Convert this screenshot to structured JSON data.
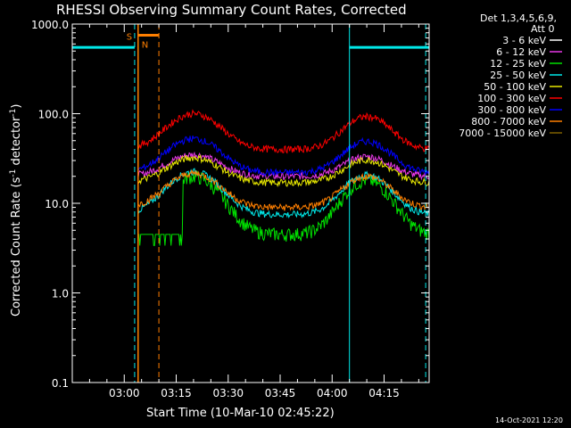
{
  "chart_data": {
    "type": "line",
    "title": "RHESSI Observing Summary Count Rates, Corrected",
    "xlabel": "Start Time (10-Mar-10 02:45:22)",
    "ylabel_main": "Corrected Count Rate (s",
    "ylabel_sup1": "-1",
    "ylabel_mid": " detector",
    "ylabel_sup2": "-1",
    "ylabel_end": ")",
    "yscale": "log",
    "ylim": [
      0.1,
      1000
    ],
    "xlim_minutes": [
      0,
      103
    ],
    "xticks_minutes": [
      15,
      30,
      45,
      60,
      75,
      90
    ],
    "x_tick_labels": [
      "03:00",
      "03:15",
      "03:30",
      "03:45",
      "04:00",
      "04:15"
    ],
    "y_tick_labels": [
      "0.1",
      "1.0",
      "10.0",
      "100.0",
      "1000.0"
    ],
    "legend_header": "Det 1,3,4,5,6,9,",
    "legend_att": "Att 0",
    "legend_position": "outside-right",
    "series": [
      {
        "name": "3 - 6 keV",
        "color": "#000000",
        "base": 15,
        "amp": 2.0
      },
      {
        "name": "6 - 12 keV",
        "color": "#e838e8",
        "base": 20,
        "amp": 1.75
      },
      {
        "name": "12 - 25 keV",
        "color": "#00e000",
        "base": 4.5,
        "amp": 4.4
      },
      {
        "name": "25 - 50 keV",
        "color": "#00e8e8",
        "base": 7.5,
        "amp": 3.0
      },
      {
        "name": "50 - 100 keV",
        "color": "#e8e800",
        "base": 17,
        "amp": 1.9
      },
      {
        "name": "100 - 300 keV",
        "color": "#ff0000",
        "base": 40,
        "amp": 2.5
      },
      {
        "name": "300 - 800 keV",
        "color": "#0000ff",
        "base": 22,
        "amp": 2.4
      },
      {
        "name": "800 - 7000 keV",
        "color": "#ff7f00",
        "base": 9,
        "amp": 2.4
      },
      {
        "name": "7000 - 15000 keV",
        "color": "#7f6000",
        "base": null,
        "amp": null
      }
    ],
    "peak_minutes": [
      35,
      85
    ],
    "saa_intervals_minutes": [
      [
        0,
        18
      ],
      [
        80,
        103
      ]
    ],
    "saa_level": 550,
    "night_intervals_minutes": [
      [
        19,
        25
      ]
    ],
    "flag_labels": [
      "S",
      "N"
    ],
    "timestamp": "14-Oct-2021 12:20"
  }
}
